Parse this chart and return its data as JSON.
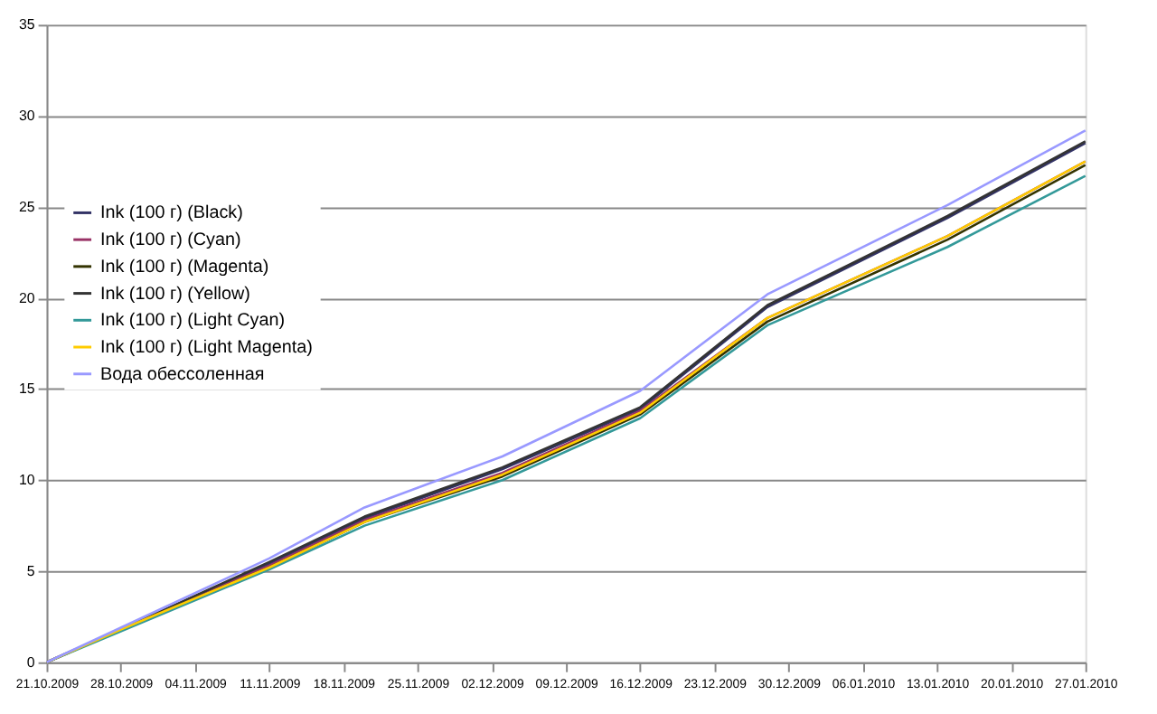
{
  "chart_data": {
    "type": "line",
    "x": [
      "2009-10-21",
      "2009-10-28",
      "2009-11-11",
      "2009-11-20",
      "2009-12-03",
      "2009-12-16",
      "2009-12-28",
      "2010-01-14",
      "2010-01-27"
    ],
    "series": [
      {
        "name": "Ink (100 г) (Black)",
        "color": "#333366",
        "values": [
          0,
          1.8,
          5.4,
          7.9,
          10.6,
          13.9,
          19.5,
          24.4,
          28.5
        ]
      },
      {
        "name": "Ink (100 г) (Cyan)",
        "color": "#993366",
        "values": [
          0,
          1.8,
          5.3,
          7.8,
          10.4,
          13.8,
          18.9,
          23.4,
          27.5
        ]
      },
      {
        "name": "Ink (100 г) (Magenta)",
        "color": "#333300",
        "values": [
          0,
          1.8,
          5.2,
          7.7,
          10.2,
          13.6,
          18.7,
          23.2,
          27.3
        ]
      },
      {
        "name": "Ink (100 г) (Yellow)",
        "color": "#333333",
        "values": [
          0,
          1.8,
          5.5,
          8.0,
          10.7,
          14.0,
          19.6,
          24.5,
          28.6
        ]
      },
      {
        "name": "Ink (100 г) (Light Cyan)",
        "color": "#339999",
        "values": [
          0,
          1.7,
          5.1,
          7.5,
          10.0,
          13.4,
          18.5,
          22.8,
          26.7
        ]
      },
      {
        "name": "Ink (100 г) (Light Magenta)",
        "color": "#ffcc00",
        "values": [
          0,
          1.8,
          5.2,
          7.7,
          10.3,
          13.7,
          18.9,
          23.4,
          27.5
        ]
      },
      {
        "name": "Вода обессоленная",
        "color": "#9999ff",
        "values": [
          0,
          1.9,
          5.7,
          8.5,
          11.3,
          14.9,
          20.2,
          25.1,
          29.2
        ]
      }
    ],
    "xlim": [
      "2009-10-21",
      "2010-01-27"
    ],
    "xticks": [
      {
        "value": "2009-10-21",
        "label": "21.10.2009"
      },
      {
        "value": "2009-10-28",
        "label": "28.10.2009"
      },
      {
        "value": "2009-11-04",
        "label": "04.11.2009"
      },
      {
        "value": "2009-11-11",
        "label": "11.11.2009"
      },
      {
        "value": "2009-11-18",
        "label": "18.11.2009"
      },
      {
        "value": "2009-11-25",
        "label": "25.11.2009"
      },
      {
        "value": "2009-12-02",
        "label": "02.12.2009"
      },
      {
        "value": "2009-12-09",
        "label": "09.12.2009"
      },
      {
        "value": "2009-12-16",
        "label": "16.12.2009"
      },
      {
        "value": "2009-12-23",
        "label": "23.12.2009"
      },
      {
        "value": "2009-12-30",
        "label": "30.12.2009"
      },
      {
        "value": "2010-01-06",
        "label": "06.01.2010"
      },
      {
        "value": "2010-01-13",
        "label": "13.01.2010"
      },
      {
        "value": "2010-01-20",
        "label": "20.01.2010"
      },
      {
        "value": "2010-01-27",
        "label": "27.01.2010"
      }
    ],
    "ylim": [
      0,
      35
    ],
    "yticks": [
      0,
      5,
      10,
      15,
      20,
      25,
      30,
      35
    ],
    "grid": "y",
    "legend": "left",
    "marker": "none",
    "line_style": "solid"
  }
}
